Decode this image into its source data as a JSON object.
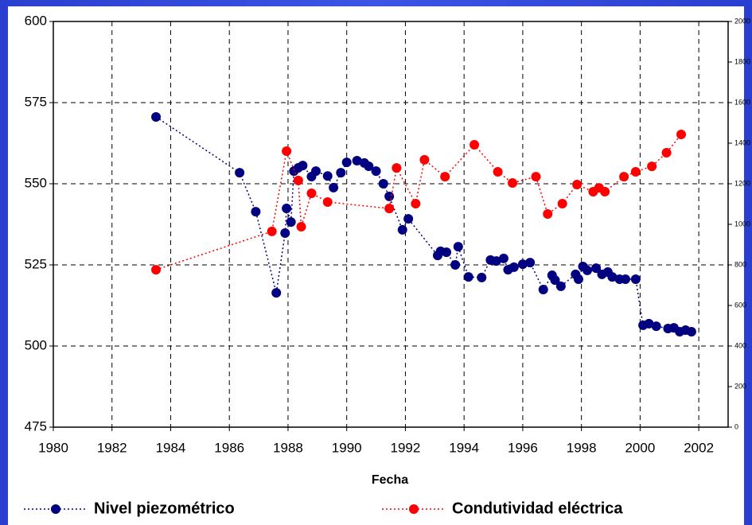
{
  "chart_data": {
    "type": "line",
    "x_label": "Fecha",
    "xlim": [
      1980,
      2003
    ],
    "xticks": [
      1980,
      1982,
      1984,
      1986,
      1988,
      1990,
      1992,
      1994,
      1996,
      1998,
      2000,
      2002
    ],
    "ylim": [
      475,
      600
    ],
    "yticks": [
      475,
      500,
      525,
      550,
      575,
      600
    ],
    "y2lim": [
      0,
      2000
    ],
    "y2ticks": [
      0,
      200,
      400,
      600,
      800,
      1000,
      1200,
      1400,
      1600,
      1800,
      2000
    ],
    "grid": true,
    "series": [
      {
        "name": "Nivel piezométrico",
        "color": "#000080",
        "x": [
          1983.5,
          1986.35,
          1986.9,
          1987.6,
          1987.9,
          1987.95,
          1988.1,
          1988.2,
          1988.35,
          1988.5,
          1988.8,
          1988.95,
          1989.35,
          1989.55,
          1989.8,
          1990.0,
          1990.35,
          1990.6,
          1990.75,
          1991.0,
          1991.25,
          1991.45,
          1991.9,
          1992.1,
          1993.1,
          1993.2,
          1993.4,
          1993.7,
          1993.8,
          1994.15,
          1994.6,
          1994.9,
          1995.1,
          1995.35,
          1995.5,
          1995.7,
          1996.0,
          1996.25,
          1996.7,
          1997.0,
          1997.1,
          1997.3,
          1997.8,
          1997.9,
          1998.05,
          1998.2,
          1998.5,
          1998.7,
          1998.9,
          1999.05,
          1999.3,
          1999.5,
          1999.85,
          2000.1,
          2000.3,
          2000.55,
          2000.95,
          2001.15,
          2001.35,
          2001.55,
          2001.75
        ],
        "values": [
          570.6,
          553.4,
          541.4,
          516.4,
          534.8,
          542.4,
          538.2,
          553.9,
          554.9,
          555.6,
          552.2,
          553.9,
          552.4,
          548.8,
          553.4,
          556.6,
          557.1,
          556.4,
          555.4,
          553.9,
          550.0,
          546.1,
          535.8,
          539.2,
          527.9,
          529.2,
          528.9,
          525,
          530.6,
          521.3,
          521.1,
          526.5,
          526.2,
          527,
          523.5,
          524.3,
          525.2,
          525.7,
          517.4,
          521.8,
          520.3,
          518.4,
          522.1,
          520.6,
          524.5,
          523.3,
          524,
          522.1,
          522.8,
          521.3,
          520.6,
          520.6,
          520.6,
          506.4,
          506.9,
          506.1,
          505.4,
          505.6,
          504.4,
          504.9,
          504.4
        ]
      },
      {
        "name": "Condutividad eléctrica",
        "color": "#ff0000",
        "axis": "y2",
        "x": [
          1983.5,
          1987.45,
          1987.95,
          1988.35,
          1988.45,
          1988.8,
          1989.35,
          1991.45,
          1991.7,
          1992.35,
          1992.65,
          1993.35,
          1994.35,
          1995.15,
          1995.65,
          1996.45,
          1996.85,
          1997.35,
          1997.85,
          1998.4,
          1998.6,
          1998.8,
          1999.45,
          1999.85,
          2000.4,
          2000.9,
          2001.4
        ],
        "values": [
          776,
          965,
          1361,
          1216,
          988,
          1153,
          1110,
          1078,
          1278,
          1102,
          1318,
          1235,
          1392,
          1259,
          1204,
          1235,
          1051,
          1102,
          1196,
          1161,
          1180,
          1161,
          1235,
          1259,
          1286,
          1353,
          1443
        ]
      }
    ]
  }
}
